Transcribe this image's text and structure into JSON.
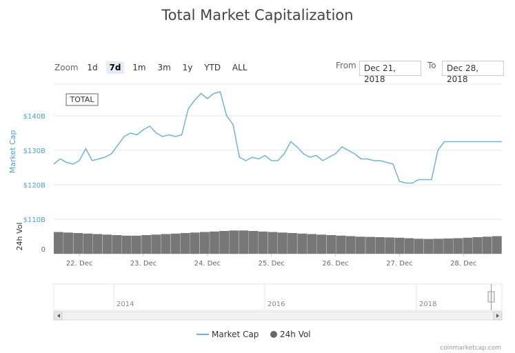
{
  "chart_data": {
    "type": "line",
    "title": "Total Market Capitalization",
    "ylabel": "Market Cap",
    "ylabel_volume": "24h Vol",
    "y_ticks": [
      "$120B",
      "$130B",
      "$140B"
    ],
    "y_ticks_lower": [
      "$110B",
      "0"
    ],
    "x_ticks": [
      "22. Dec",
      "23. Dec",
      "24. Dec",
      "25. Dec",
      "26. Dec",
      "27. Dec",
      "28. Dec"
    ],
    "navigator_ticks": [
      "2014",
      "2016",
      "2018"
    ],
    "legend": [
      "Market Cap",
      "24h Vol"
    ],
    "flag_label": "TOTAL",
    "series": [
      {
        "name": "Market Cap",
        "unit": "billion USD",
        "x": [
          21.6,
          21.7,
          21.8,
          21.9,
          22.0,
          22.1,
          22.2,
          22.3,
          22.4,
          22.5,
          22.6,
          22.7,
          22.8,
          22.9,
          23.0,
          23.1,
          23.2,
          23.3,
          23.4,
          23.5,
          23.6,
          23.7,
          23.8,
          23.9,
          24.0,
          24.1,
          24.2,
          24.3,
          24.4,
          24.5,
          24.6,
          24.7,
          24.8,
          24.9,
          25.0,
          25.1,
          25.2,
          25.3,
          25.4,
          25.5,
          25.6,
          25.7,
          25.8,
          25.9,
          26.0,
          26.1,
          26.2,
          26.3,
          26.4,
          26.5,
          26.6,
          26.7,
          26.8,
          26.9,
          27.0,
          27.1,
          27.2,
          27.3,
          27.4,
          27.5,
          27.6,
          27.7,
          27.8,
          27.9,
          28.0,
          28.1,
          28.2,
          28.3,
          28.4,
          28.5,
          28.6
        ],
        "values": [
          126.0,
          127.5,
          126.5,
          126.0,
          127.0,
          130.5,
          127.0,
          127.5,
          128.0,
          129.0,
          131.5,
          134.0,
          135.0,
          134.5,
          136.0,
          137.0,
          135.0,
          134.0,
          134.5,
          134.0,
          134.5,
          142.0,
          144.5,
          146.5,
          145.0,
          146.5,
          147.0,
          140.0,
          137.5,
          128.0,
          127.0,
          128.0,
          127.5,
          128.5,
          127.0,
          127.0,
          129.0,
          132.5,
          131.0,
          129.0,
          128.0,
          128.5,
          127.0,
          128.0,
          129.0,
          131.0,
          130.0,
          129.0,
          127.5,
          127.5,
          127.0,
          127.0,
          126.5,
          126.0,
          121.0,
          120.5,
          120.5,
          121.5,
          121.5,
          121.5,
          130.0,
          132.5,
          132.5,
          132.5,
          132.5,
          132.5,
          132.5,
          132.5,
          132.5,
          132.5,
          132.5
        ]
      },
      {
        "name": "24h Vol",
        "values": [
          0.84,
          0.82,
          0.8,
          0.78,
          0.76,
          0.74,
          0.72,
          0.7,
          0.7,
          0.72,
          0.74,
          0.76,
          0.78,
          0.8,
          0.82,
          0.84,
          0.86,
          0.88,
          0.9,
          0.9,
          0.88,
          0.86,
          0.84,
          0.82,
          0.8,
          0.78,
          0.76,
          0.74,
          0.72,
          0.7,
          0.68,
          0.66,
          0.65,
          0.64,
          0.63,
          0.62,
          0.6,
          0.58,
          0.57,
          0.58,
          0.59,
          0.6,
          0.62,
          0.64,
          0.66,
          0.68
        ]
      }
    ]
  },
  "zoom": {
    "label": "Zoom",
    "buttons": [
      "1d",
      "7d",
      "1m",
      "3m",
      "1y",
      "YTD",
      "ALL"
    ],
    "active": "7d"
  },
  "range": {
    "from_label": "From",
    "from_value": "Dec 21, 2018",
    "to_label": "To",
    "to_value": "Dec 28, 2018"
  },
  "credit": "coinmarketcap.com",
  "colors": {
    "line": "#6fb3d9",
    "volume": "#777777",
    "axis_blue": "#4aa3d9"
  }
}
